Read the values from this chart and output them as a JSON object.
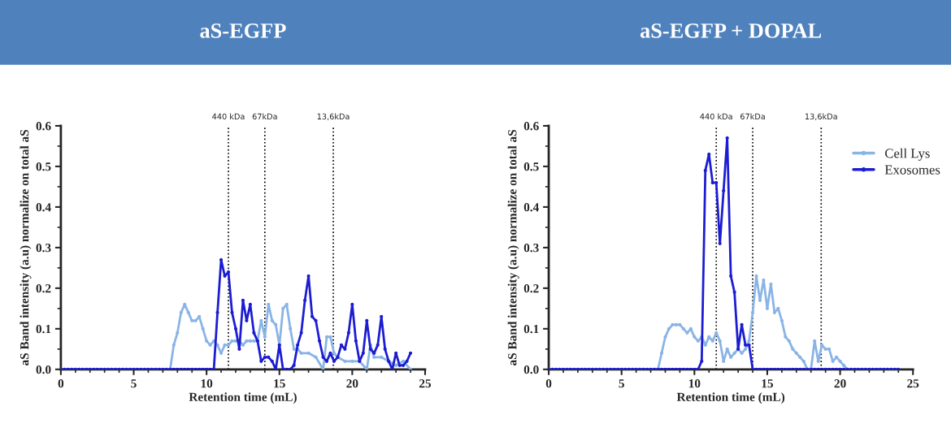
{
  "chart_data": [
    {
      "type": "line",
      "title": "aS-EGFP",
      "xlabel": "Retention time (mL)",
      "ylabel": "aS Band intensity (a.u) normalize on total aS",
      "xlim": [
        0,
        25
      ],
      "xticks": [
        0,
        5,
        10,
        15,
        20,
        25
      ],
      "ylim": [
        0,
        0.6
      ],
      "yticks": [
        {
          "value": 0,
          "label": "0.0"
        },
        0.1,
        0.2,
        0.3,
        0.4,
        0.5,
        0.6
      ],
      "grid": false,
      "legend": false,
      "marker": "circle",
      "line_style": "solid",
      "ref_lines": [
        {
          "axis": "x",
          "value": 11.5,
          "label": "440 kDa",
          "line_style": "dotted",
          "color": "#000000"
        },
        {
          "axis": "x",
          "value": 14,
          "label": "67kDa",
          "line_style": "dotted",
          "color": "#000000"
        },
        {
          "axis": "x",
          "value": 18.7,
          "label": "13,6kDa",
          "line_style": "dotted",
          "color": "#000000"
        }
      ],
      "series": [
        {
          "color": "#8ab4e6",
          "x": [
            0,
            0.25,
            0.5,
            0.75,
            1,
            1.25,
            1.5,
            1.75,
            2,
            2.25,
            2.5,
            2.75,
            3,
            3.25,
            3.5,
            3.75,
            4,
            4.25,
            4.5,
            4.75,
            5,
            5.25,
            5.5,
            5.75,
            6,
            6.25,
            6.5,
            6.75,
            7,
            7.25,
            7.5,
            7.75,
            8,
            8.25,
            8.5,
            8.75,
            9,
            9.25,
            9.5,
            9.75,
            10,
            10.25,
            10.5,
            10.75,
            11,
            11.25,
            11.5,
            11.75,
            12,
            12.25,
            12.5,
            12.75,
            13,
            13.25,
            13.5,
            13.75,
            14,
            14.25,
            14.5,
            14.75,
            15,
            15.25,
            15.5,
            15.75,
            16,
            16.25,
            16.5,
            17,
            17.5,
            18,
            18.25,
            18.5,
            18.75,
            19,
            19.5,
            20,
            20.5,
            21,
            21.25,
            21.5,
            22,
            22.5,
            23,
            23.5,
            24
          ],
          "values": [
            0,
            0,
            0,
            0,
            0,
            0,
            0,
            0,
            0,
            0,
            0,
            0,
            0,
            0,
            0,
            0,
            0,
            0,
            0,
            0,
            0,
            0,
            0,
            0,
            0,
            0,
            0,
            0,
            0,
            0,
            0,
            0.06,
            0.09,
            0.14,
            0.16,
            0.14,
            0.12,
            0.12,
            0.13,
            0.1,
            0.07,
            0.06,
            0.07,
            0.06,
            0.04,
            0.06,
            0.06,
            0.07,
            0.07,
            0.07,
            0.06,
            0.07,
            0.07,
            0.07,
            0.07,
            0.12,
            0.08,
            0.16,
            0.12,
            0.11,
            0.06,
            0.15,
            0.16,
            0.1,
            0.05,
            0.05,
            0.04,
            0.04,
            0.03,
            0,
            0.08,
            0.08,
            0.04,
            0.03,
            0.02,
            0.02,
            0.02,
            0,
            0.06,
            0.03,
            0.03,
            0.02,
            0.01,
            0.02,
            0
          ]
        },
        {
          "color": "#1c1cd2",
          "x": [
            0,
            0.25,
            0.5,
            0.75,
            1,
            1.25,
            1.5,
            1.75,
            2,
            2.25,
            2.5,
            2.75,
            3,
            3.25,
            3.5,
            3.75,
            4,
            4.25,
            4.5,
            4.75,
            5,
            5.25,
            5.5,
            5.75,
            6,
            6.25,
            6.5,
            6.75,
            7,
            7.25,
            7.5,
            7.75,
            8,
            8.25,
            8.5,
            8.75,
            9,
            9.25,
            9.5,
            9.75,
            10,
            10.25,
            10.5,
            10.75,
            11,
            11.25,
            11.5,
            11.75,
            12,
            12.25,
            12.5,
            12.75,
            13,
            13.25,
            13.5,
            13.75,
            14,
            14.25,
            14.5,
            14.75,
            15,
            15.25,
            15.5,
            15.75,
            16,
            16.25,
            16.5,
            16.75,
            17,
            17.25,
            17.5,
            17.75,
            18,
            18.25,
            18.5,
            18.75,
            19,
            19.25,
            19.5,
            19.75,
            20,
            20.25,
            20.5,
            20.75,
            21,
            21.25,
            21.5,
            21.75,
            22,
            22.25,
            22.5,
            22.75,
            23,
            23.25,
            23.5,
            23.75,
            24
          ],
          "values": [
            0,
            0,
            0,
            0,
            0,
            0,
            0,
            0,
            0,
            0,
            0,
            0,
            0,
            0,
            0,
            0,
            0,
            0,
            0,
            0,
            0,
            0,
            0,
            0,
            0,
            0,
            0,
            0,
            0,
            0,
            0,
            0,
            0,
            0,
            0,
            0,
            0,
            0,
            0,
            0,
            0,
            0,
            0,
            0.14,
            0.27,
            0.23,
            0.24,
            0.14,
            0.1,
            0.05,
            0.17,
            0.12,
            0.16,
            0.09,
            0.07,
            0.02,
            0.03,
            0.03,
            0.02,
            0,
            0.06,
            0,
            0,
            0,
            0.01,
            0.06,
            0.09,
            0.17,
            0.23,
            0.13,
            0.12,
            0.07,
            0.03,
            0.02,
            0.04,
            0.02,
            0.03,
            0.06,
            0.05,
            0.09,
            0.16,
            0.07,
            0.02,
            0.04,
            0.12,
            0.05,
            0.04,
            0.06,
            0.13,
            0.05,
            0.02,
            0,
            0.04,
            0.01,
            0.01,
            0.02,
            0.04
          ]
        }
      ]
    },
    {
      "type": "line",
      "title": "aS-EGFP + DOPAL",
      "xlabel": "Retention time (mL)",
      "ylabel": "aS Band intensity (a.u) normalize on total aS",
      "xlim": [
        0,
        25
      ],
      "xticks": [
        0,
        5,
        10,
        15,
        20,
        25
      ],
      "ylim": [
        0,
        0.6
      ],
      "yticks": [
        {
          "value": 0,
          "label": "0.0"
        },
        0.1,
        0.2,
        0.3,
        0.4,
        0.5,
        0.6
      ],
      "grid": false,
      "legend": "right",
      "marker": "circle",
      "line_style": "solid",
      "ref_lines": [
        {
          "axis": "x",
          "value": 11.5,
          "label": "440 kDa",
          "line_style": "dotted",
          "color": "#000000"
        },
        {
          "axis": "x",
          "value": 14,
          "label": "67kDa",
          "line_style": "dotted",
          "color": "#000000"
        },
        {
          "axis": "x",
          "value": 18.7,
          "label": "13,6kDa",
          "line_style": "dotted",
          "color": "#000000"
        }
      ],
      "series": [
        {
          "name": "Cell Lys",
          "color": "#8ab4e6",
          "x": [
            0,
            0.25,
            0.5,
            0.75,
            1,
            1.25,
            1.5,
            1.75,
            2,
            2.25,
            2.5,
            2.75,
            3,
            3.25,
            3.5,
            3.75,
            4,
            4.25,
            4.5,
            4.75,
            5,
            5.25,
            5.5,
            5.75,
            6,
            6.25,
            6.5,
            6.75,
            7,
            7.25,
            7.5,
            7.75,
            8,
            8.25,
            8.5,
            8.75,
            9,
            9.25,
            9.5,
            9.75,
            10,
            10.25,
            10.5,
            10.75,
            11,
            11.25,
            11.5,
            11.75,
            12,
            12.25,
            12.5,
            12.75,
            13,
            13.25,
            13.5,
            13.75,
            14,
            14.25,
            14.5,
            14.75,
            15,
            15.25,
            15.5,
            15.75,
            16,
            16.25,
            16.5,
            16.75,
            17,
            17.25,
            17.5,
            17.75,
            18,
            18.25,
            18.5,
            18.75,
            19,
            19.25,
            19.5,
            19.75,
            20,
            20.25,
            20.5,
            20.75,
            21,
            21.25,
            21.5,
            21.75,
            22,
            22.25,
            22.5,
            22.75,
            23,
            23.25,
            23.5,
            23.75,
            24
          ],
          "values": [
            0,
            0,
            0,
            0,
            0,
            0,
            0,
            0,
            0,
            0,
            0,
            0,
            0,
            0,
            0,
            0,
            0,
            0,
            0,
            0,
            0,
            0,
            0,
            0,
            0,
            0,
            0,
            0,
            0,
            0,
            0,
            0.04,
            0.08,
            0.1,
            0.11,
            0.11,
            0.11,
            0.1,
            0.09,
            0.1,
            0.08,
            0.07,
            0.08,
            0.06,
            0.08,
            0.07,
            0.09,
            0.07,
            0.02,
            0.05,
            0.03,
            0.04,
            0.05,
            0.04,
            0.05,
            0.07,
            0.14,
            0.23,
            0.17,
            0.22,
            0.15,
            0.21,
            0.14,
            0.15,
            0.12,
            0.08,
            0.07,
            0.05,
            0.04,
            0.03,
            0.02,
            0,
            0,
            0.07,
            0.02,
            0.06,
            0.05,
            0.05,
            0.02,
            0.03,
            0.02,
            0.01,
            0,
            0,
            0,
            0,
            0,
            0,
            0,
            0,
            0,
            0,
            0,
            0,
            0,
            0,
            0
          ]
        },
        {
          "name": "Exosomes",
          "color": "#1c1cd2",
          "x": [
            0,
            0.25,
            0.5,
            0.75,
            1,
            1.25,
            1.5,
            1.75,
            2,
            2.25,
            2.5,
            2.75,
            3,
            3.25,
            3.5,
            3.75,
            4,
            4.25,
            4.5,
            4.75,
            5,
            5.25,
            5.5,
            5.75,
            6,
            6.25,
            6.5,
            6.75,
            7,
            7.25,
            7.5,
            7.75,
            8,
            8.25,
            8.5,
            8.75,
            9,
            9.25,
            9.5,
            9.75,
            10,
            10.25,
            10.5,
            10.75,
            11,
            11.25,
            11.5,
            11.75,
            12,
            12.25,
            12.5,
            12.75,
            13,
            13.25,
            13.5,
            13.75,
            14,
            14.25,
            14.5,
            14.75,
            15,
            15.25,
            15.5,
            15.75,
            16,
            16.25,
            16.5,
            16.75,
            17,
            17.25,
            17.5,
            17.75,
            18,
            18.25,
            18.5,
            18.75,
            19,
            19.25,
            19.5,
            19.75,
            20,
            20.25,
            20.5,
            20.75,
            21,
            21.25,
            21.5,
            21.75,
            22,
            22.25,
            22.5,
            22.75,
            23,
            23.25,
            23.5,
            23.75,
            24
          ],
          "values": [
            0,
            0,
            0,
            0,
            0,
            0,
            0,
            0,
            0,
            0,
            0,
            0,
            0,
            0,
            0,
            0,
            0,
            0,
            0,
            0,
            0,
            0,
            0,
            0,
            0,
            0,
            0,
            0,
            0,
            0,
            0,
            0,
            0,
            0,
            0,
            0,
            0,
            0,
            0,
            0,
            0,
            0,
            0.02,
            0.49,
            0.53,
            0.46,
            0.46,
            0.31,
            0.44,
            0.57,
            0.23,
            0.19,
            0.05,
            0.11,
            0.06,
            0.06,
            0,
            0,
            0,
            0,
            0,
            0,
            0,
            0,
            0,
            0,
            0,
            0,
            0,
            0,
            0,
            0,
            0,
            0,
            0,
            0,
            0,
            0,
            0,
            0,
            0,
            0,
            0,
            0,
            0,
            0,
            0,
            0,
            0,
            0,
            0,
            0,
            0,
            0,
            0,
            0,
            0
          ]
        }
      ]
    }
  ]
}
